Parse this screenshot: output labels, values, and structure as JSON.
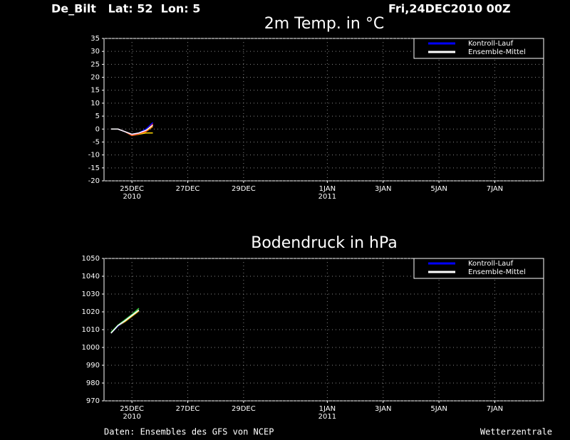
{
  "header": {
    "station": "De_Bilt   Lat: 52  Lon: 5",
    "date": "Fri,24DEC2010 00Z"
  },
  "footer": {
    "source": "Daten: Ensembles des GFS von NCEP",
    "brand": "Wetterzentrale"
  },
  "chart_data": [
    {
      "type": "line",
      "title": "2m Temp. in °C",
      "x": [
        "2010-12-24T06:00Z",
        "2010-12-24T12:00Z",
        "2010-12-24T18:00Z",
        "2010-12-25T00:00Z",
        "2010-12-25T06:00Z",
        "2010-12-25T12:00Z",
        "2010-12-25T18:00Z"
      ],
      "xlim": [
        "2010-12-24T00:00Z",
        "2011-01-08T18:00Z"
      ],
      "xticks": [
        {
          "value": "2010-12-25T00:00Z",
          "label": "25DEC"
        },
        {
          "value": "2010-12-27T00:00Z",
          "label": "27DEC"
        },
        {
          "value": "2010-12-29T00:00Z",
          "label": "29DEC"
        },
        {
          "value": "2011-01-01T00:00Z",
          "label": "1JAN"
        },
        {
          "value": "2011-01-03T00:00Z",
          "label": "3JAN"
        },
        {
          "value": "2011-01-05T00:00Z",
          "label": "5JAN"
        },
        {
          "value": "2011-01-07T00:00Z",
          "label": "7JAN"
        }
      ],
      "xtick_years": [
        {
          "value": "2010-12-25T00:00Z",
          "label": "2010"
        },
        {
          "value": "2011-01-01T00:00Z",
          "label": "2011"
        }
      ],
      "ylim": [
        -20,
        35
      ],
      "yticks": [
        -20,
        -15,
        -10,
        -5,
        0,
        5,
        10,
        15,
        20,
        25,
        30,
        35
      ],
      "grid": true,
      "legend": "top-right",
      "series": [
        {
          "color": "#ff8c00",
          "values": [
            0,
            0,
            -1,
            -2.5,
            -2,
            -1,
            1
          ]
        },
        {
          "color": "#ffd700",
          "values": [
            0,
            0,
            -1,
            -2,
            -2,
            -1.5,
            -1.5
          ]
        },
        {
          "color": "#ff3030",
          "values": [
            0,
            0,
            -1,
            -2.3,
            -1.8,
            -0.8,
            2
          ]
        },
        {
          "name": "Kontroll-Lauf",
          "color": "#0000ff",
          "values": [
            0,
            0,
            -1,
            -2,
            -1.5,
            0,
            2.5
          ]
        },
        {
          "name": "Ensemble-Mittel",
          "color": "#ffffff",
          "values": [
            0,
            0,
            -1,
            -2,
            -1.5,
            -0.5,
            1.5
          ]
        }
      ]
    },
    {
      "type": "line",
      "title": "Bodendruck in hPa",
      "x": [
        "2010-12-24T06:00Z",
        "2010-12-24T12:00Z",
        "2010-12-24T18:00Z",
        "2010-12-25T00:00Z",
        "2010-12-25T06:00Z"
      ],
      "xlim": [
        "2010-12-24T00:00Z",
        "2011-01-08T18:00Z"
      ],
      "xticks": [
        {
          "value": "2010-12-25T00:00Z",
          "label": "25DEC"
        },
        {
          "value": "2010-12-27T00:00Z",
          "label": "27DEC"
        },
        {
          "value": "2010-12-29T00:00Z",
          "label": "29DEC"
        },
        {
          "value": "2011-01-01T00:00Z",
          "label": "1JAN"
        },
        {
          "value": "2011-01-03T00:00Z",
          "label": "3JAN"
        },
        {
          "value": "2011-01-05T00:00Z",
          "label": "5JAN"
        },
        {
          "value": "2011-01-07T00:00Z",
          "label": "7JAN"
        }
      ],
      "xtick_years": [
        {
          "value": "2010-12-25T00:00Z",
          "label": "2010"
        },
        {
          "value": "2011-01-01T00:00Z",
          "label": "2011"
        }
      ],
      "ylim": [
        970,
        1050
      ],
      "yticks": [
        970,
        980,
        990,
        1000,
        1010,
        1020,
        1030,
        1040,
        1050
      ],
      "grid": true,
      "legend": "top-right",
      "series": [
        {
          "color": "#40e040",
          "values": [
            1008.5,
            1012.5,
            1015.5,
            1018.5,
            1022
          ]
        },
        {
          "color": "#ffd700",
          "values": [
            1008,
            1012,
            1014.5,
            1017.5,
            1020.5
          ]
        },
        {
          "name": "Kontroll-Lauf",
          "color": "#0000ff",
          "values": [
            1008,
            1012,
            1015,
            1018,
            1021
          ]
        },
        {
          "name": "Ensemble-Mittel",
          "color": "#ffffff",
          "values": [
            1008,
            1012.3,
            1015,
            1018,
            1021
          ]
        }
      ]
    }
  ]
}
